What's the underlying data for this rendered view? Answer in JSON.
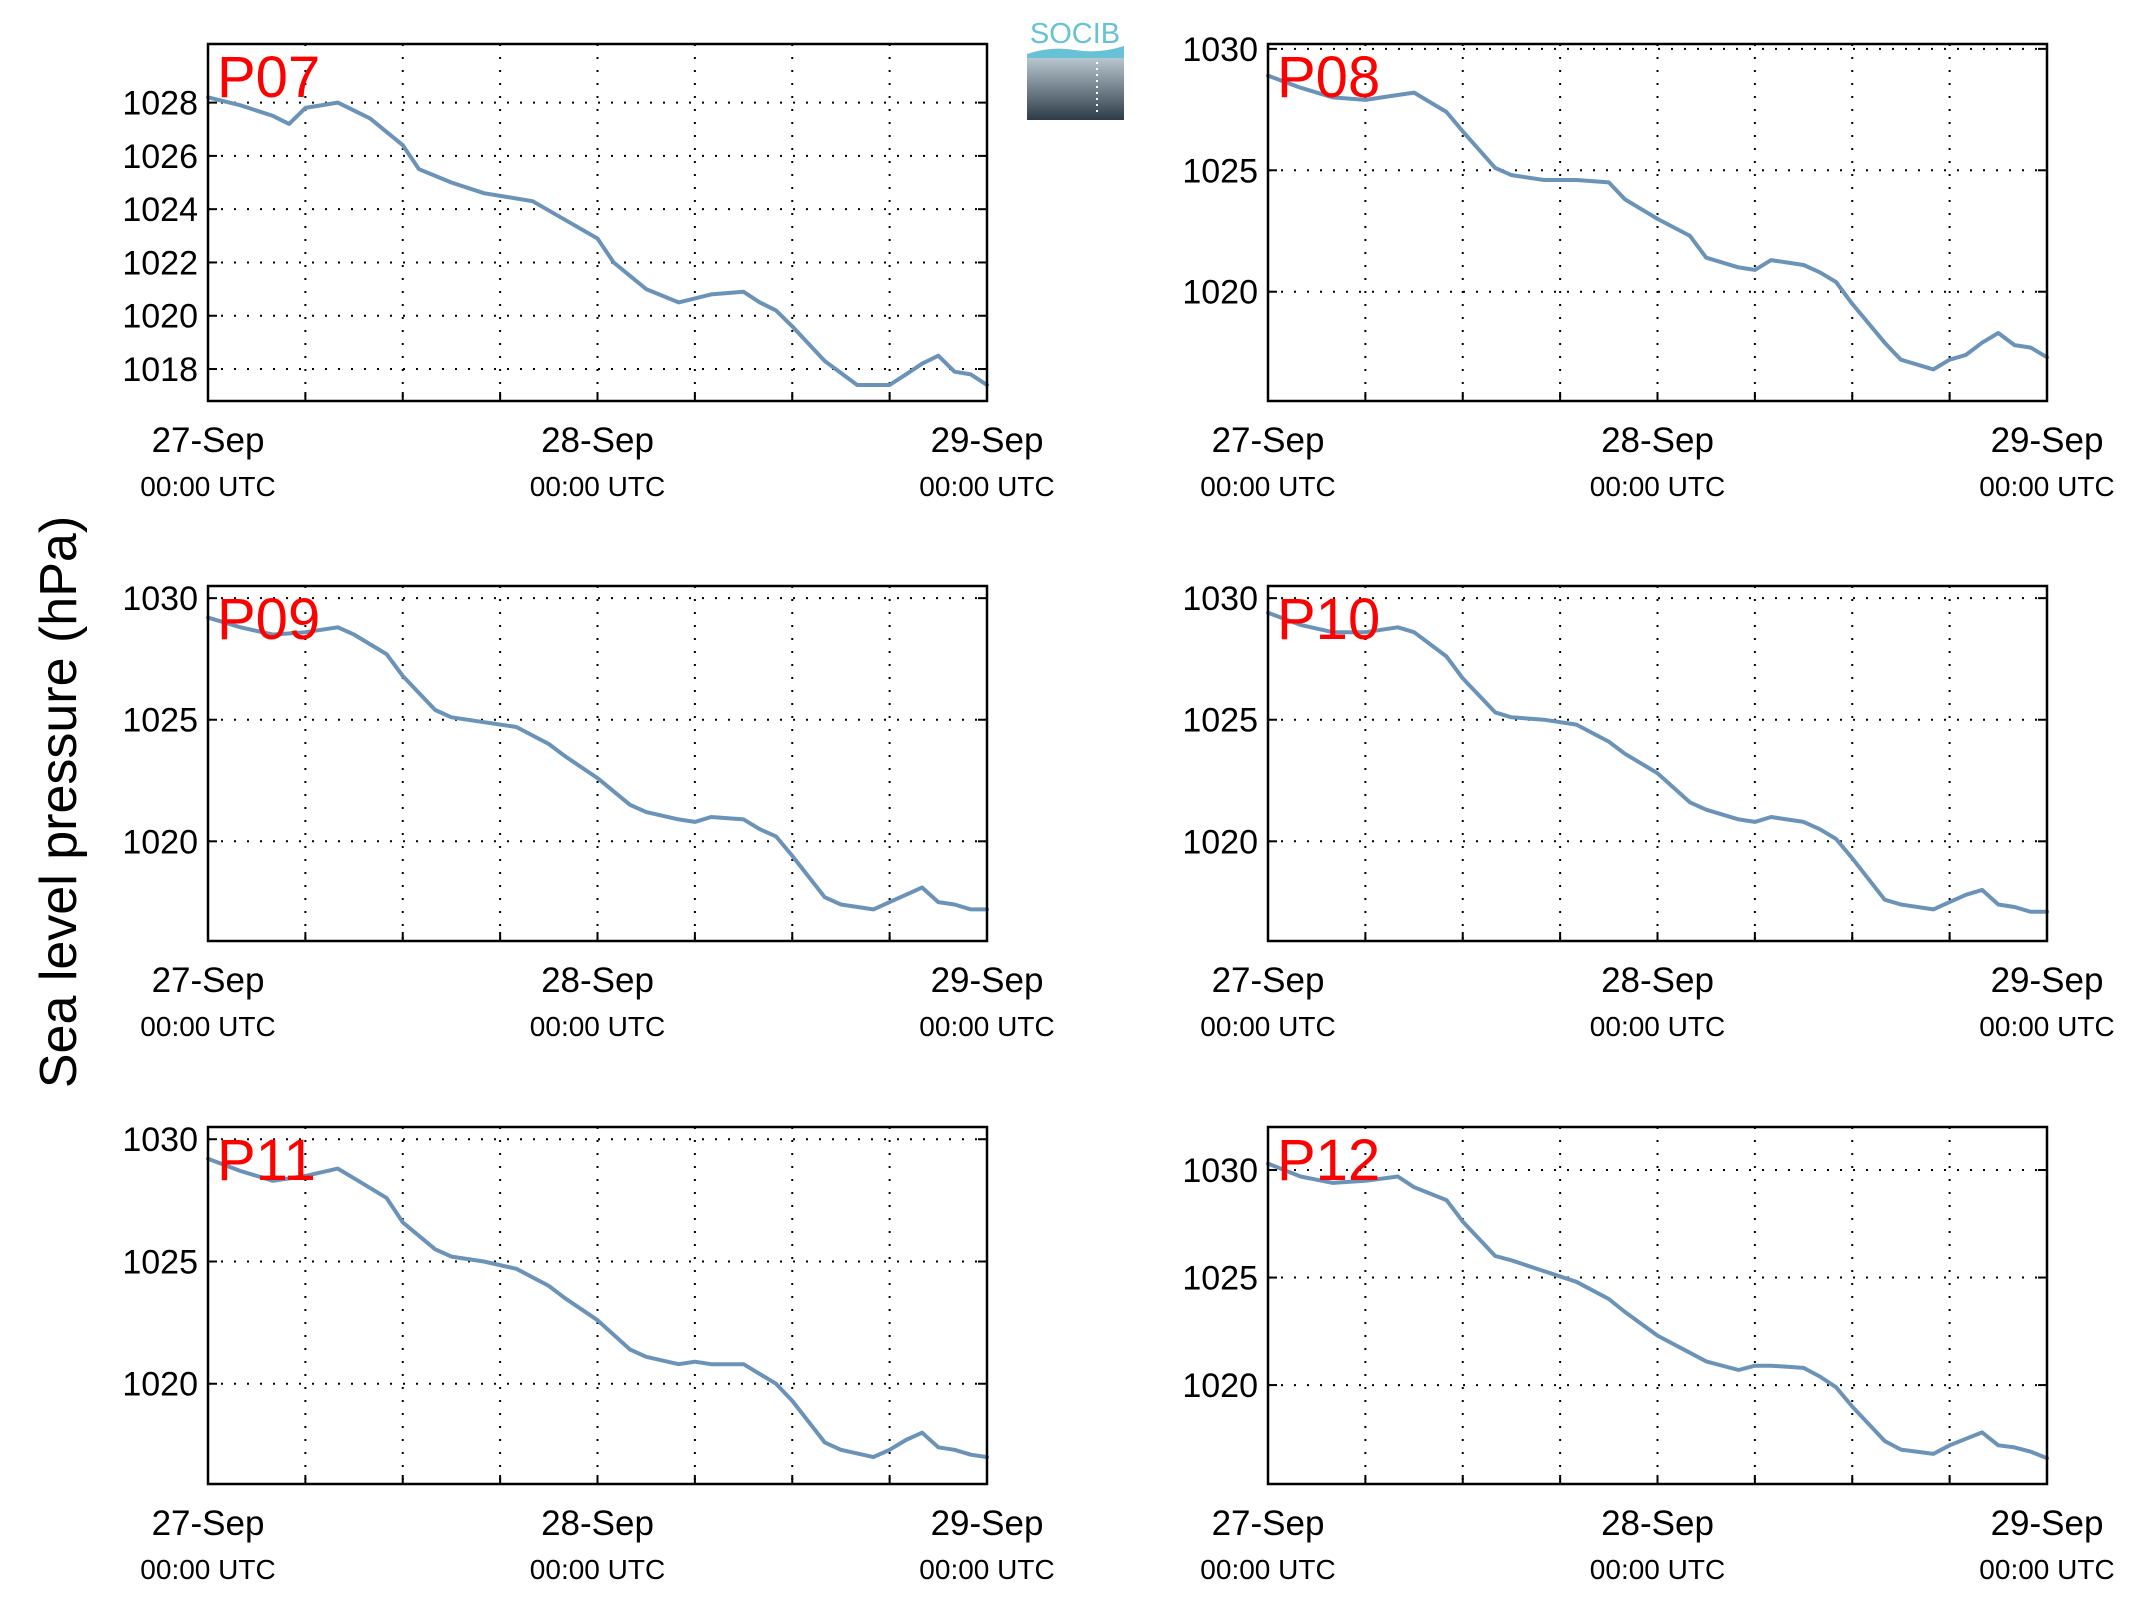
{
  "ylabel": "Sea level pressure (hPa)",
  "logo": {
    "text": "SOCIB"
  },
  "colors": {
    "line": "#6b93b8",
    "panel_label": "#ff0000",
    "logo_text": "#66c2d4"
  },
  "chart_data": [
    {
      "type": "line",
      "title": "P07",
      "xlim": [
        0,
        48
      ],
      "ylim": [
        1016.8,
        1030.2
      ],
      "yticks": [
        1018,
        1020,
        1022,
        1024,
        1026,
        1028
      ],
      "yticklabels": [
        "1018",
        "1020",
        "1022",
        "1024",
        "1026",
        "1028"
      ],
      "xticks": [
        0,
        24,
        48
      ],
      "xticklabels": [
        [
          "27-Sep",
          "00:00 UTC"
        ],
        [
          "28-Sep",
          "00:00 UTC"
        ],
        [
          "29-Sep",
          "00:00 UTC"
        ]
      ],
      "grid": true,
      "x": [
        0,
        2,
        4,
        5,
        6,
        8,
        9,
        10,
        12,
        13,
        15,
        17,
        19,
        20,
        22,
        24,
        25,
        27,
        29,
        31,
        33,
        34,
        35,
        36,
        38,
        40,
        42,
        43,
        44,
        45,
        46,
        47,
        48
      ],
      "y": [
        1028.2,
        1027.9,
        1027.5,
        1027.2,
        1027.8,
        1028.0,
        1027.7,
        1027.4,
        1026.4,
        1025.5,
        1025.0,
        1024.6,
        1024.4,
        1024.3,
        1023.6,
        1022.9,
        1022.0,
        1021.0,
        1020.5,
        1020.8,
        1020.9,
        1020.5,
        1020.2,
        1019.6,
        1018.3,
        1017.4,
        1017.4,
        1017.8,
        1018.2,
        1018.5,
        1017.9,
        1017.8,
        1017.4
      ]
    },
    {
      "type": "line",
      "title": "P08",
      "xlim": [
        0,
        48
      ],
      "ylim": [
        1015.5,
        1030.2
      ],
      "yticks": [
        1020,
        1025,
        1030
      ],
      "yticklabels": [
        "1020",
        "1025",
        "1030"
      ],
      "xticks": [
        0,
        24,
        48
      ],
      "xticklabels": [
        [
          "27-Sep",
          "00:00 UTC"
        ],
        [
          "28-Sep",
          "00:00 UTC"
        ],
        [
          "29-Sep",
          "00:00 UTC"
        ]
      ],
      "grid": true,
      "x": [
        0,
        2,
        4,
        6,
        8,
        9,
        11,
        12,
        14,
        15,
        17,
        19,
        21,
        22,
        24,
        26,
        27,
        29,
        30,
        31,
        33,
        34,
        35,
        36,
        38,
        39,
        41,
        42,
        43,
        44,
        45,
        46,
        47,
        48
      ],
      "y": [
        1028.9,
        1028.4,
        1028.0,
        1027.9,
        1028.1,
        1028.2,
        1027.4,
        1026.6,
        1025.1,
        1024.8,
        1024.6,
        1024.6,
        1024.5,
        1023.8,
        1023.0,
        1022.3,
        1021.4,
        1021.0,
        1020.9,
        1021.3,
        1021.1,
        1020.8,
        1020.4,
        1019.5,
        1017.9,
        1017.2,
        1016.8,
        1017.2,
        1017.4,
        1017.9,
        1018.3,
        1017.8,
        1017.7,
        1017.3
      ]
    },
    {
      "type": "line",
      "title": "P09",
      "xlim": [
        0,
        48
      ],
      "ylim": [
        1015.9,
        1030.5
      ],
      "yticks": [
        1020,
        1025,
        1030
      ],
      "yticklabels": [
        "1020",
        "1025",
        "1030"
      ],
      "xticks": [
        0,
        24,
        48
      ],
      "xticklabels": [
        [
          "27-Sep",
          "00:00 UTC"
        ],
        [
          "28-Sep",
          "00:00 UTC"
        ],
        [
          "29-Sep",
          "00:00 UTC"
        ]
      ],
      "grid": true,
      "x": [
        0,
        2,
        4,
        6,
        8,
        9,
        11,
        12,
        14,
        15,
        17,
        19,
        21,
        22,
        24,
        26,
        27,
        29,
        30,
        31,
        33,
        34,
        35,
        36,
        38,
        39,
        41,
        42,
        43,
        44,
        45,
        46,
        47,
        48
      ],
      "y": [
        1029.2,
        1028.8,
        1028.5,
        1028.6,
        1028.8,
        1028.5,
        1027.7,
        1026.8,
        1025.4,
        1025.1,
        1024.9,
        1024.7,
        1024.0,
        1023.5,
        1022.6,
        1021.5,
        1021.2,
        1020.9,
        1020.8,
        1021.0,
        1020.9,
        1020.5,
        1020.2,
        1019.4,
        1017.7,
        1017.4,
        1017.2,
        1017.5,
        1017.8,
        1018.1,
        1017.5,
        1017.4,
        1017.2,
        1017.2
      ]
    },
    {
      "type": "line",
      "title": "P10",
      "xlim": [
        0,
        48
      ],
      "ylim": [
        1015.9,
        1030.5
      ],
      "yticks": [
        1020,
        1025,
        1030
      ],
      "yticklabels": [
        "1020",
        "1025",
        "1030"
      ],
      "xticks": [
        0,
        24,
        48
      ],
      "xticklabels": [
        [
          "27-Sep",
          "00:00 UTC"
        ],
        [
          "28-Sep",
          "00:00 UTC"
        ],
        [
          "29-Sep",
          "00:00 UTC"
        ]
      ],
      "grid": true,
      "x": [
        0,
        2,
        4,
        6,
        8,
        9,
        11,
        12,
        14,
        15,
        17,
        19,
        21,
        22,
        24,
        26,
        27,
        29,
        30,
        31,
        33,
        34,
        35,
        36,
        38,
        39,
        41,
        42,
        43,
        44,
        45,
        46,
        47,
        48
      ],
      "y": [
        1029.4,
        1028.9,
        1028.6,
        1028.6,
        1028.8,
        1028.6,
        1027.6,
        1026.7,
        1025.3,
        1025.1,
        1025.0,
        1024.8,
        1024.1,
        1023.6,
        1022.8,
        1021.6,
        1021.3,
        1020.9,
        1020.8,
        1021.0,
        1020.8,
        1020.5,
        1020.1,
        1019.3,
        1017.6,
        1017.4,
        1017.2,
        1017.5,
        1017.8,
        1018.0,
        1017.4,
        1017.3,
        1017.1,
        1017.1
      ]
    },
    {
      "type": "line",
      "title": "P11",
      "xlim": [
        0,
        48
      ],
      "ylim": [
        1015.9,
        1030.5
      ],
      "yticks": [
        1020,
        1025,
        1030
      ],
      "yticklabels": [
        "1020",
        "1025",
        "1030"
      ],
      "xticks": [
        0,
        24,
        48
      ],
      "xticklabels": [
        [
          "27-Sep",
          "00:00 UTC"
        ],
        [
          "28-Sep",
          "00:00 UTC"
        ],
        [
          "29-Sep",
          "00:00 UTC"
        ]
      ],
      "grid": true,
      "x": [
        0,
        2,
        4,
        6,
        8,
        9,
        11,
        12,
        14,
        15,
        17,
        19,
        21,
        22,
        24,
        26,
        27,
        29,
        30,
        31,
        33,
        34,
        35,
        36,
        38,
        39,
        41,
        42,
        43,
        44,
        45,
        46,
        47,
        48
      ],
      "y": [
        1029.2,
        1028.7,
        1028.3,
        1028.5,
        1028.8,
        1028.4,
        1027.6,
        1026.6,
        1025.5,
        1025.2,
        1025.0,
        1024.7,
        1024.0,
        1023.5,
        1022.6,
        1021.4,
        1021.1,
        1020.8,
        1020.9,
        1020.8,
        1020.8,
        1020.4,
        1020.0,
        1019.3,
        1017.6,
        1017.3,
        1017.0,
        1017.3,
        1017.7,
        1018.0,
        1017.4,
        1017.3,
        1017.1,
        1017.0
      ]
    },
    {
      "type": "line",
      "title": "P12",
      "xlim": [
        0,
        48
      ],
      "ylim": [
        1015.4,
        1032.0
      ],
      "yticks": [
        1020,
        1025,
        1030
      ],
      "yticklabels": [
        "1020",
        "1025",
        "1030"
      ],
      "xticks": [
        0,
        24,
        48
      ],
      "xticklabels": [
        [
          "27-Sep",
          "00:00 UTC"
        ],
        [
          "28-Sep",
          "00:00 UTC"
        ],
        [
          "29-Sep",
          "00:00 UTC"
        ]
      ],
      "grid": true,
      "x": [
        0,
        2,
        4,
        6,
        8,
        9,
        11,
        12,
        14,
        15,
        17,
        19,
        21,
        22,
        24,
        26,
        27,
        29,
        30,
        31,
        33,
        34,
        35,
        36,
        38,
        39,
        41,
        42,
        43,
        44,
        45,
        46,
        47,
        48
      ],
      "y": [
        1030.3,
        1029.7,
        1029.4,
        1029.5,
        1029.7,
        1029.2,
        1028.6,
        1027.6,
        1026.0,
        1025.8,
        1025.3,
        1024.8,
        1024.0,
        1023.4,
        1022.3,
        1021.5,
        1021.1,
        1020.7,
        1020.9,
        1020.9,
        1020.8,
        1020.4,
        1019.9,
        1019.0,
        1017.4,
        1017.0,
        1016.8,
        1017.2,
        1017.5,
        1017.8,
        1017.2,
        1017.1,
        1016.9,
        1016.6
      ]
    }
  ]
}
